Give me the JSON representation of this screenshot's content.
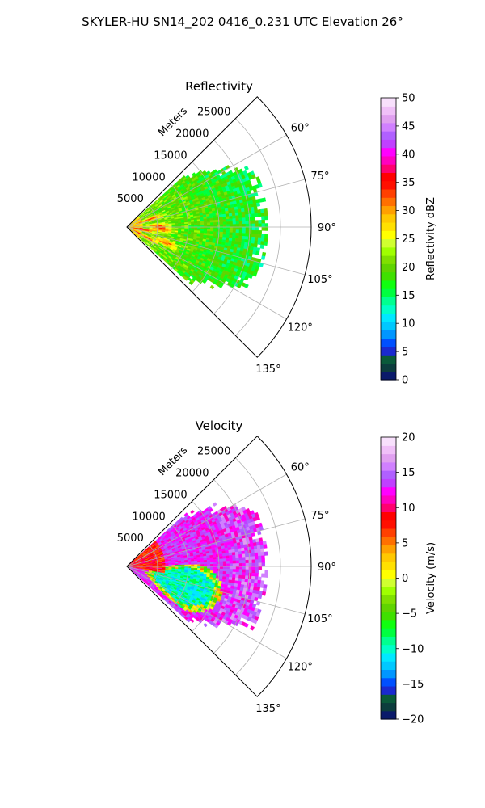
{
  "figure": {
    "suptitle": "SKYLER-HU  SN14_202  0416_0.231 UTC Elevation 26°"
  },
  "chart_data": [
    {
      "type": "heatmap",
      "projection": "polar sector",
      "title": "Reflectivity",
      "radial_label": "Meters",
      "radial_ticks": [
        5000,
        10000,
        15000,
        20000,
        25000
      ],
      "radial_tick_labels": [
        "5000",
        "10000",
        "15000",
        "20000",
        "25000"
      ],
      "rlim": [
        0,
        30000
      ],
      "azimuth_range_deg": [
        45,
        135
      ],
      "azimuth_ticks": [
        60,
        75,
        90,
        105,
        120,
        135
      ],
      "azimuth_tick_labels": [
        "60°",
        "75°",
        "90°",
        "105°",
        "120°",
        "135°"
      ],
      "grid": true,
      "data_extent": {
        "azimuth_deg": [
          48,
          132
        ],
        "range_m": [
          0,
          23000
        ]
      },
      "colorbar": {
        "label": "Reflectivity dBZ",
        "vmin": 0,
        "vmax": 50,
        "ticks": [
          0,
          5,
          10,
          15,
          20,
          25,
          30,
          35,
          40,
          45,
          50
        ],
        "tick_labels": [
          "0",
          "5",
          "10",
          "15",
          "20",
          "25",
          "30",
          "35",
          "40",
          "45",
          "50"
        ],
        "colors": [
          "#0a1a6a",
          "#0c3d3d",
          "#0a5a3a",
          "#1a2ad0",
          "#0050ff",
          "#0096ff",
          "#00c8ff",
          "#00e8ff",
          "#00ffc8",
          "#00ff90",
          "#00ff40",
          "#10ff10",
          "#40e000",
          "#60d400",
          "#80e000",
          "#a0ff00",
          "#d0ff30",
          "#ffff00",
          "#ffe000",
          "#ffc800",
          "#ffa000",
          "#ff7000",
          "#ff4000",
          "#ff1000",
          "#ff0000",
          "#ff0070",
          "#ff00c0",
          "#ff00ff",
          "#c040ff",
          "#b060ff",
          "#d080ff",
          "#e0a0f0",
          "#f0c0f8",
          "#f8e0fc"
        ]
      }
    },
    {
      "type": "heatmap",
      "projection": "polar sector",
      "title": "Velocity",
      "radial_label": "Meters",
      "radial_ticks": [
        5000,
        10000,
        15000,
        20000,
        25000
      ],
      "radial_tick_labels": [
        "5000",
        "10000",
        "15000",
        "20000",
        "25000"
      ],
      "rlim": [
        0,
        30000
      ],
      "azimuth_range_deg": [
        45,
        135
      ],
      "azimuth_ticks": [
        60,
        75,
        90,
        105,
        120,
        135
      ],
      "azimuth_tick_labels": [
        "60°",
        "75°",
        "90°",
        "105°",
        "120°",
        "135°"
      ],
      "grid": true,
      "data_extent": {
        "azimuth_deg": [
          48,
          132
        ],
        "range_m": [
          0,
          23000
        ]
      },
      "colorbar": {
        "label": "Velocity (m/s)",
        "vmin": -20,
        "vmax": 20,
        "ticks": [
          -20,
          -15,
          -10,
          -5,
          0,
          5,
          10,
          15,
          20
        ],
        "tick_labels": [
          "−20",
          "−15",
          "−10",
          "−5",
          "0",
          "5",
          "10",
          "15",
          "20"
        ],
        "colors": [
          "#0a1a6a",
          "#0c3d3d",
          "#0a5a3a",
          "#1a2ad0",
          "#0050ff",
          "#0096ff",
          "#00c8ff",
          "#00e8ff",
          "#00ffc8",
          "#00ff90",
          "#00ff40",
          "#10ff10",
          "#40e000",
          "#60d400",
          "#80e000",
          "#a0ff00",
          "#d0ff30",
          "#ffff00",
          "#ffe000",
          "#ffc800",
          "#ffa000",
          "#ff7000",
          "#ff4000",
          "#ff1000",
          "#ff0000",
          "#ff0070",
          "#ff00c0",
          "#ff00ff",
          "#c040ff",
          "#b060ff",
          "#d080ff",
          "#e0a0f0",
          "#f0c0f8",
          "#f8e0fc"
        ]
      }
    }
  ]
}
